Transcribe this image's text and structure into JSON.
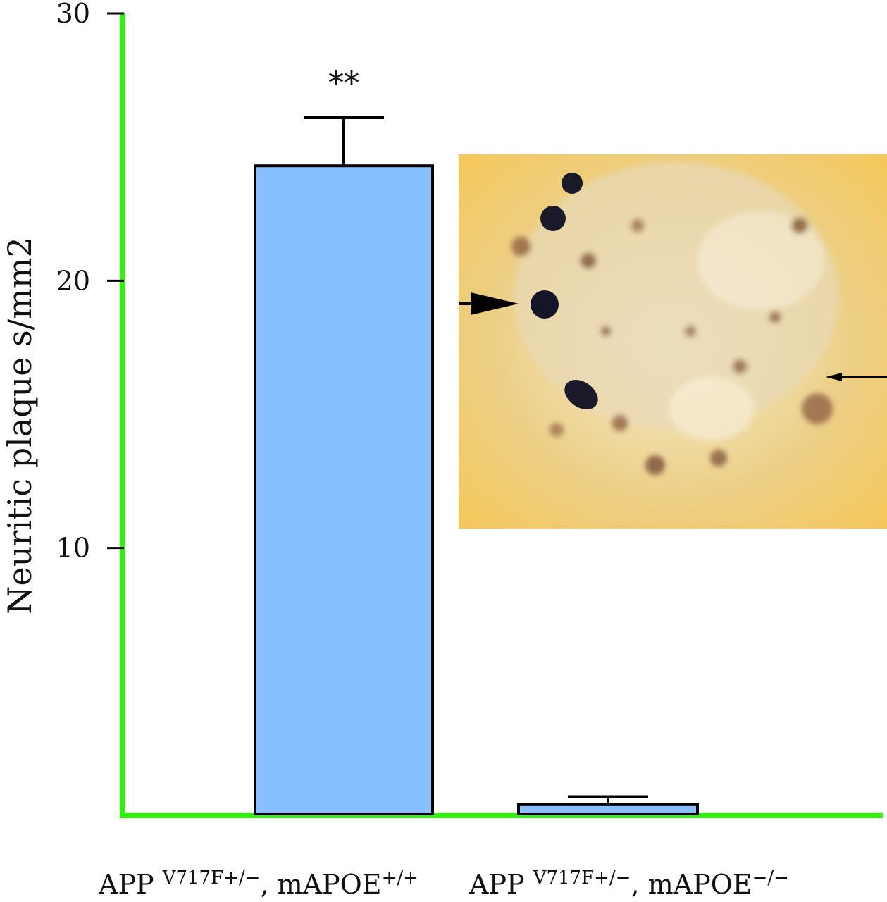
{
  "chart_data": {
    "type": "bar",
    "ylabel": "Neuritic plaque s/mm2",
    "ylim": [
      0,
      30
    ],
    "yticks": [
      "10",
      "20",
      "30"
    ],
    "categories": [
      {
        "base": "APP ",
        "sup1": "V717F+/−",
        "mid": ", mAPOE",
        "sup2": "+/+"
      },
      {
        "base": "APP ",
        "sup1": "V717F+/−",
        "mid": ", mAPOE",
        "sup2": "−/−"
      }
    ],
    "values": [
      24.3,
      0.4
    ],
    "errors": [
      1.8,
      0.3
    ],
    "annotations": [
      "**",
      ""
    ],
    "colors": {
      "bar": "#87bfff",
      "axis": "#33ee11",
      "outline": "#000000"
    }
  }
}
